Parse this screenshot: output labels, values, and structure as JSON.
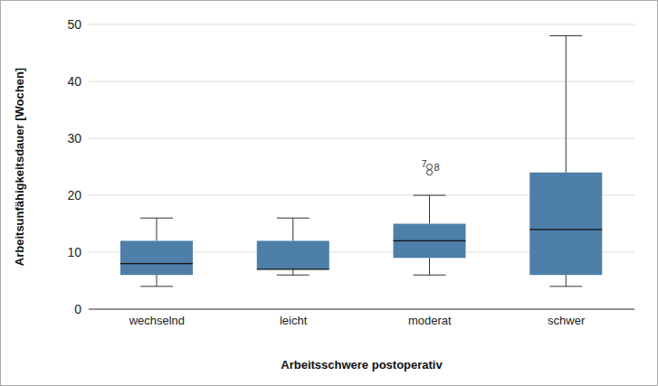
{
  "chart_data": {
    "type": "box",
    "x_label": "Arbeitsschwere postoperativ",
    "y_label": "Arbeitsunfähigkeitsdauer [Wochen]",
    "categories": [
      "wechselnd",
      "leicht",
      "moderat",
      "schwer"
    ],
    "min": [
      4,
      6,
      6,
      4
    ],
    "q1": [
      6,
      7,
      9,
      6
    ],
    "median": [
      8,
      7,
      12,
      14
    ],
    "q3": [
      12,
      12,
      15,
      24
    ],
    "max": [
      16,
      16,
      20,
      48
    ],
    "outliers": [
      [],
      [],
      [
        {
          "value": 24,
          "label": "7"
        },
        {
          "value": 25,
          "label": "8"
        }
      ],
      []
    ],
    "color": "#4d7fa8",
    "ylim": [
      0,
      50
    ],
    "yticks": [
      0,
      10,
      20,
      30,
      40,
      50
    ],
    "grid": true
  }
}
